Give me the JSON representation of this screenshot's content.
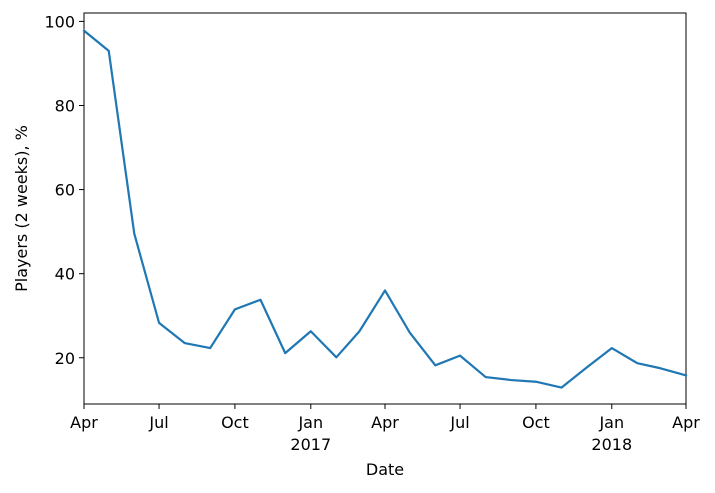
{
  "chart_data": {
    "type": "line",
    "title": "",
    "xlabel": "Date",
    "ylabel": "Players (2 weeks), %",
    "grid": false,
    "color": "#1f77b4",
    "x": [
      "2016-04-01",
      "2016-05-01",
      "2016-06-01",
      "2016-07-01",
      "2016-08-01",
      "2016-09-01",
      "2016-10-01",
      "2016-11-01",
      "2016-12-01",
      "2017-01-01",
      "2017-02-01",
      "2017-03-01",
      "2017-04-01",
      "2017-05-01",
      "2017-06-01",
      "2017-07-01",
      "2017-08-01",
      "2017-09-01",
      "2017-10-01",
      "2017-11-01",
      "2017-12-01",
      "2018-01-01",
      "2018-02-01",
      "2018-03-01",
      "2018-04-01"
    ],
    "y": [
      97.8,
      93.0,
      49.5,
      28.3,
      23.5,
      22.3,
      31.5,
      33.8,
      21.1,
      26.3,
      20.1,
      26.3,
      36.0,
      26.0,
      18.2,
      20.5,
      15.4,
      14.7,
      14.3,
      12.9,
      17.6,
      22.3,
      18.7,
      17.5,
      15.8
    ],
    "xlim": [
      "2016-04-01",
      "2018-04-01"
    ],
    "ylim": [
      9.0,
      102.0
    ],
    "yticks": [
      20,
      40,
      60,
      80,
      100
    ],
    "xticks": [
      {
        "date": "2016-04-01",
        "label": "Apr",
        "sublabel": ""
      },
      {
        "date": "2016-07-01",
        "label": "Jul",
        "sublabel": ""
      },
      {
        "date": "2016-10-01",
        "label": "Oct",
        "sublabel": ""
      },
      {
        "date": "2017-01-01",
        "label": "Jan",
        "sublabel": "2017"
      },
      {
        "date": "2017-04-01",
        "label": "Apr",
        "sublabel": ""
      },
      {
        "date": "2017-07-01",
        "label": "Jul",
        "sublabel": ""
      },
      {
        "date": "2017-10-01",
        "label": "Oct",
        "sublabel": ""
      },
      {
        "date": "2018-01-01",
        "label": "Jan",
        "sublabel": "2018"
      },
      {
        "date": "2018-04-01",
        "label": "Apr",
        "sublabel": ""
      }
    ]
  }
}
